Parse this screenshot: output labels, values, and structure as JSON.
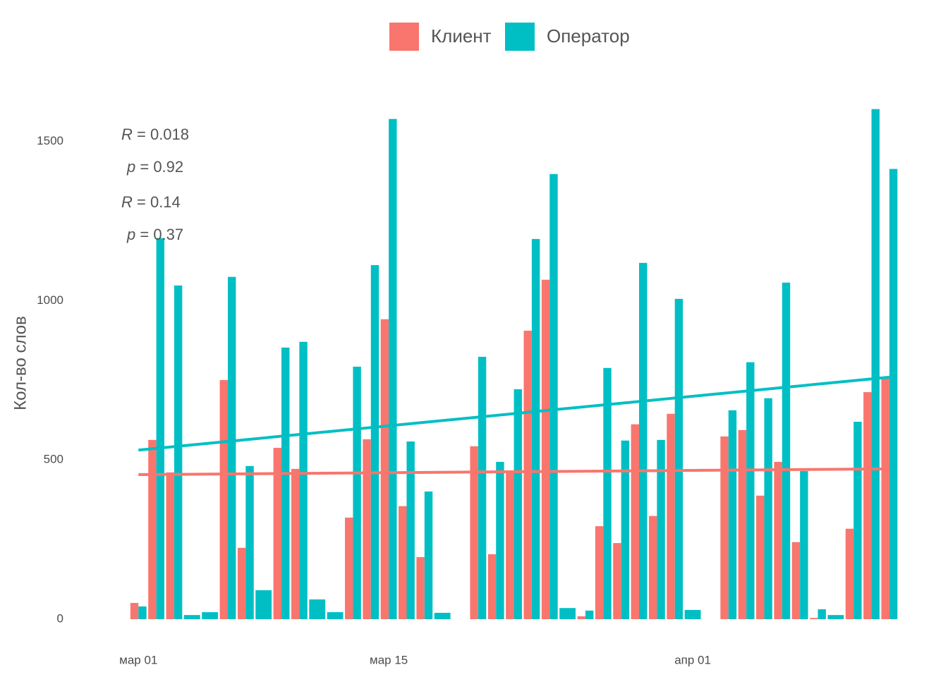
{
  "chart_data": {
    "type": "bar",
    "y_label": "Кол-во слов",
    "x": [
      "03-01",
      "03-02",
      "03-03",
      "03-04",
      "03-05",
      "03-06",
      "03-07",
      "03-08",
      "03-09",
      "03-10",
      "03-11",
      "03-12",
      "03-13",
      "03-14",
      "03-15",
      "03-16",
      "03-17",
      "03-18",
      "03-19",
      "03-20",
      "03-21",
      "03-22",
      "03-23",
      "03-24",
      "03-25",
      "03-26",
      "03-27",
      "03-28",
      "03-29",
      "03-30",
      "03-31",
      "04-01",
      "04-02",
      "04-03",
      "04-04",
      "04-05",
      "04-06",
      "04-07",
      "04-08",
      "04-09",
      "04-10",
      "04-11",
      "04-12"
    ],
    "xlim": [
      "02-27",
      "04-14"
    ],
    "xticks": [
      {
        "value": "03-01",
        "label": "мар 01"
      },
      {
        "value": "03-15",
        "label": "мар 15"
      },
      {
        "value": "04-01",
        "label": "апр 01"
      }
    ],
    "ylim": [
      0,
      1650
    ],
    "yticks": [
      0,
      500,
      1000,
      1500
    ],
    "grid": false,
    "legend": "top",
    "series": [
      {
        "name": "Клиент",
        "color": "#f8766d",
        "values": [
          51,
          563,
          461,
          null,
          null,
          751,
          224,
          null,
          538,
          472,
          null,
          null,
          319,
          565,
          942,
          355,
          195,
          null,
          null,
          543,
          204,
          461,
          906,
          1066,
          null,
          9,
          292,
          239,
          612,
          324,
          645,
          null,
          null,
          574,
          594,
          388,
          494,
          242,
          4,
          null,
          284,
          713,
          756
        ],
        "trend": [
          454,
          472
        ]
      },
      {
        "name": "Оператор",
        "color": "#00bfc4",
        "values": [
          40,
          1197,
          1048,
          13,
          22,
          1075,
          481,
          91,
          853,
          871,
          62,
          22,
          793,
          1112,
          1571,
          558,
          401,
          20,
          null,
          824,
          494,
          722,
          1194,
          1398,
          35,
          27,
          789,
          561,
          1119,
          563,
          1006,
          29,
          null,
          656,
          807,
          694,
          1057,
          465,
          31,
          13,
          620,
          1602,
          1414
        ],
        "trend": [
          531,
          760
        ]
      }
    ],
    "annotations": [
      {
        "var": "R",
        "text": " = 0.018"
      },
      {
        "var": "p",
        "text": " = 0.92"
      },
      {
        "var": "R",
        "text": " = 0.14"
      },
      {
        "var": "p",
        "text": " = 0.37"
      }
    ]
  }
}
